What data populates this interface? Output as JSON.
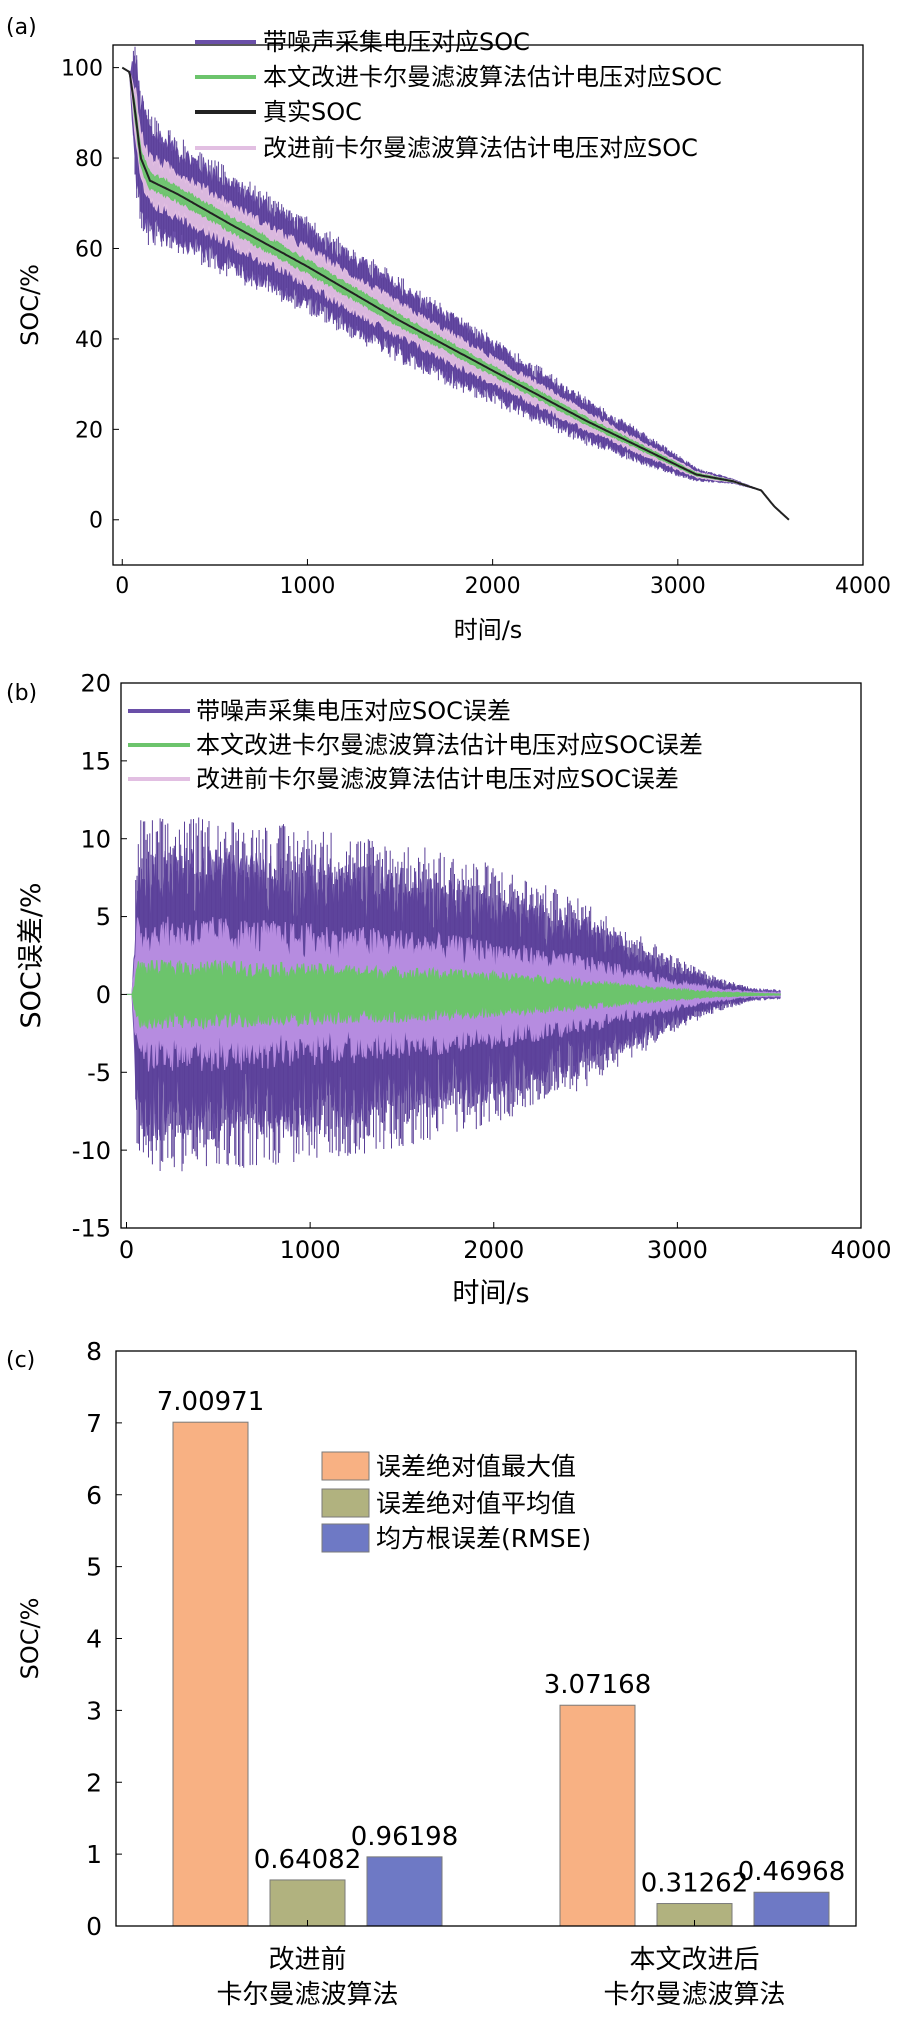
{
  "chart_data": [
    {
      "panel": "(a)",
      "type": "line",
      "title": "",
      "xlabel": "时间/s",
      "ylabel": "SOC/%",
      "xlim": [
        -50,
        4000
      ],
      "ylim": [
        -10,
        105
      ],
      "xticks": [
        0,
        1000,
        2000,
        3000,
        4000
      ],
      "yticks": [
        0,
        20,
        40,
        60,
        80,
        100
      ],
      "legend_position": "top-right",
      "series": [
        {
          "name": "带噪声采集电压对应SOC",
          "color": "#6a4fa8",
          "spread": [
            0,
            0,
            15,
            15,
            14,
            12,
            11,
            10,
            9,
            7,
            5,
            3,
            1.5,
            0.5,
            0,
            0,
            0
          ]
        },
        {
          "name": "本文改进卡尔曼滤波算法估计电压对应SOC",
          "color": "#6cc46c",
          "spread": [
            0,
            0,
            2.5,
            2.5,
            2.2,
            2,
            2,
            1.8,
            1.6,
            1.3,
            1,
            0.7,
            0.4,
            0.2,
            0,
            0,
            0
          ]
        },
        {
          "name": "真实SOC",
          "color": "#222222",
          "spread": []
        },
        {
          "name": "改进前卡尔曼滤波算法估计电压对应SOC",
          "color": "#e2bfe2",
          "spread": [
            0,
            0,
            7,
            7,
            6.5,
            6,
            5.5,
            5,
            4.5,
            3.5,
            2.5,
            1.5,
            0.8,
            0.3,
            0,
            0,
            0
          ]
        }
      ],
      "true_soc": {
        "x": [
          0,
          40,
          70,
          100,
          150,
          300,
          600,
          1000,
          1500,
          2000,
          2500,
          2900,
          3100,
          3300,
          3450,
          3520,
          3600
        ],
        "y": [
          100,
          99,
          90,
          80,
          75,
          72,
          65,
          56,
          44,
          33,
          22,
          14,
          10,
          8.5,
          6.5,
          3,
          0
        ]
      }
    },
    {
      "panel": "(b)",
      "type": "line",
      "title": "",
      "xlabel": "时间/s",
      "ylabel": "SOC误差/%",
      "xlim": [
        -30,
        4000
      ],
      "ylim": [
        -15,
        20
      ],
      "xticks": [
        0,
        1000,
        2000,
        3000,
        4000
      ],
      "yticks": [
        -15,
        -10,
        -5,
        0,
        5,
        10,
        15,
        20
      ],
      "legend_position": "top-right",
      "series": [
        {
          "name": "带噪声采集电压对应SOC误差",
          "color": "#6a4fa8",
          "x": [
            0,
            30,
            60,
            500,
            1000,
            1500,
            2000,
            2500,
            2800,
            3000,
            3200,
            3400,
            3550
          ],
          "amplitude": [
            0,
            0,
            9.5,
            9.5,
            9,
            8.2,
            7,
            5,
            3.2,
            2,
            1,
            0.4,
            0.3
          ]
        },
        {
          "name": "改进前卡尔曼滤波算法估计电压对应SOC误差",
          "color": "#b68ce0",
          "x": [
            0,
            30,
            60,
            500,
            1000,
            1500,
            2000,
            2500,
            2800,
            3000,
            3200,
            3400,
            3550
          ],
          "amplitude": [
            0,
            0,
            5,
            5,
            4.6,
            4.2,
            3.5,
            2.5,
            1.6,
            1,
            0.5,
            0.2,
            0.15
          ]
        },
        {
          "name": "本文改进卡尔曼滤波算法估计电压对应SOC误差",
          "color": "#6cc46c",
          "x": [
            0,
            30,
            60,
            500,
            1000,
            1500,
            2000,
            2500,
            2800,
            3000,
            3200,
            3400,
            3550
          ],
          "amplitude": [
            0,
            0,
            2.2,
            2.2,
            2,
            1.8,
            1.5,
            1,
            0.6,
            0.4,
            0.2,
            0.1,
            0.05
          ]
        }
      ]
    },
    {
      "panel": "(c)",
      "type": "bar",
      "title": "",
      "xlabel": "",
      "ylabel": "SOC/%",
      "ylim": [
        0,
        8
      ],
      "yticks": [
        0,
        1,
        2,
        3,
        4,
        5,
        6,
        7,
        8
      ],
      "legend_position": "top-center",
      "categories": [
        [
          "改进前",
          "卡尔曼滤波算法"
        ],
        [
          "本文改进后",
          "卡尔曼滤波算法"
        ]
      ],
      "series": [
        {
          "name": "误差绝对值最大值",
          "color": "#f8b183",
          "values": [
            7.00971,
            3.07168
          ],
          "labels": [
            "7.00971",
            "3.07168"
          ]
        },
        {
          "name": "误差绝对值平均值",
          "color": "#b1b27f",
          "values": [
            0.64082,
            0.31262
          ],
          "labels": [
            "0.64082",
            "0.31262"
          ]
        },
        {
          "name": "均方根误差(RMSE)",
          "color": "#6e79c5",
          "values": [
            0.96198,
            0.46968
          ],
          "labels": [
            "0.96198",
            "0.46968"
          ]
        }
      ]
    }
  ]
}
